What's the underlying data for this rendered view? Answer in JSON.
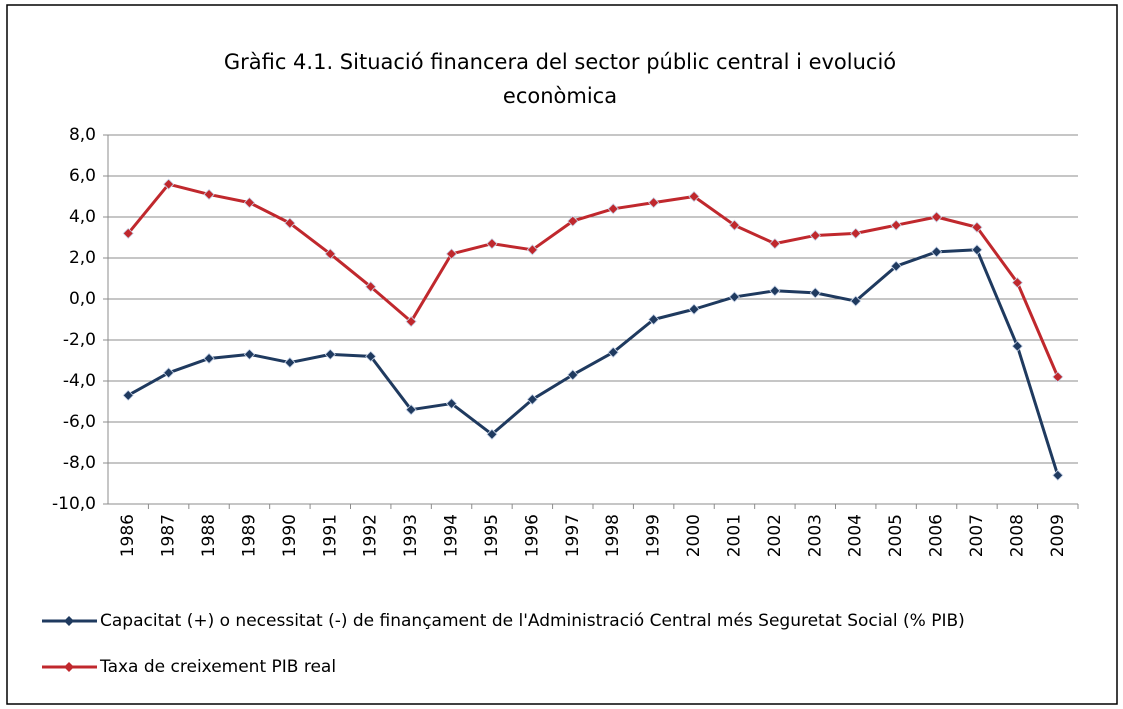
{
  "chart_data": {
    "type": "line",
    "title": [
      "Gràfic 4.1. Situació financera del sector públic central i evolució",
      "econòmica"
    ],
    "categories": [
      "1986",
      "1987",
      "1988",
      "1989",
      "1990",
      "1991",
      "1992",
      "1993",
      "1994",
      "1995",
      "1996",
      "1997",
      "1998",
      "1999",
      "2000",
      "2001",
      "2002",
      "2003",
      "2004",
      "2005",
      "2006",
      "2007",
      "2008",
      "2009"
    ],
    "series": [
      {
        "name": "Capacitat (+) o necessitat (-) de finançament de l'Administració Central més Seguretat Social (% PIB)",
        "color": "#1f3a5f",
        "values": [
          -4.7,
          -3.6,
          -2.9,
          -2.7,
          -3.1,
          -2.7,
          -2.8,
          -5.4,
          -5.1,
          -6.6,
          -4.9,
          -3.7,
          -2.6,
          -1.0,
          -0.5,
          0.1,
          0.4,
          0.3,
          -0.1,
          1.6,
          2.3,
          2.4,
          -2.3,
          -8.6
        ]
      },
      {
        "name": "Taxa de creixement PIB real",
        "color": "#c0282d",
        "values": [
          3.2,
          5.6,
          5.1,
          4.7,
          3.7,
          2.2,
          0.6,
          -1.1,
          2.2,
          2.7,
          2.4,
          3.8,
          4.4,
          4.7,
          5.0,
          3.6,
          2.7,
          3.1,
          3.2,
          3.6,
          4.0,
          3.5,
          0.8,
          -3.8
        ]
      }
    ],
    "ylim": [
      -10,
      8
    ],
    "yticks": [
      {
        "value": -10,
        "label": "-10,0"
      },
      {
        "value": -8,
        "label": "-8,0"
      },
      {
        "value": -6,
        "label": "-6,0"
      },
      {
        "value": -4,
        "label": "-4,0"
      },
      {
        "value": -2,
        "label": "-2,0"
      },
      {
        "value": 0,
        "label": "0,0"
      },
      {
        "value": 2,
        "label": "2,0"
      },
      {
        "value": 4,
        "label": "4,0"
      },
      {
        "value": 6,
        "label": "6,0"
      },
      {
        "value": 8,
        "label": "8,0"
      }
    ],
    "grid": true
  }
}
